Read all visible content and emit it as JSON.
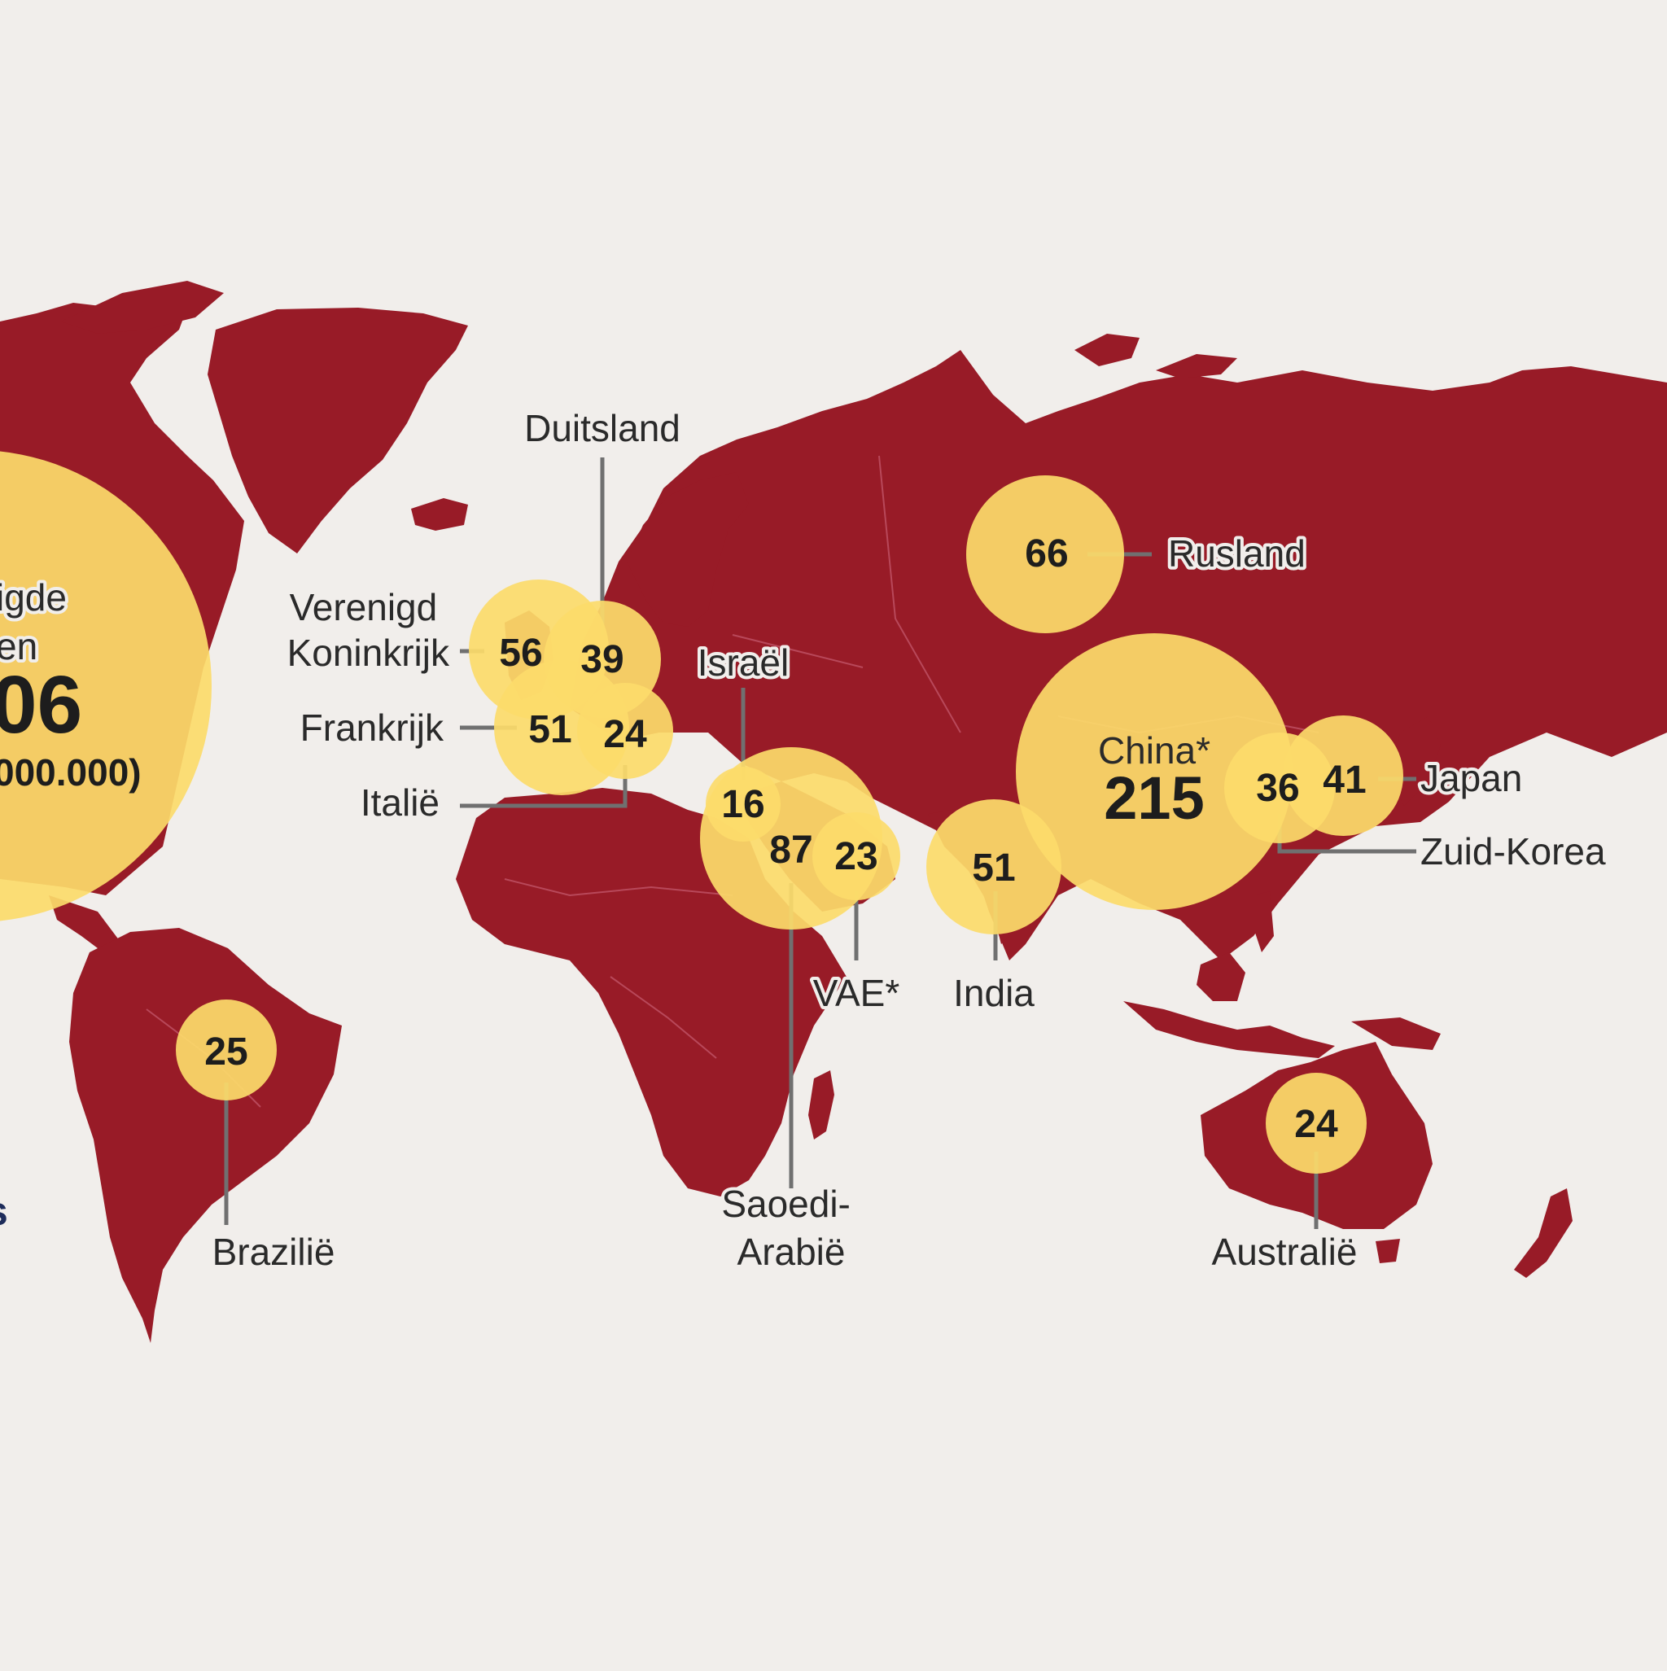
{
  "colors": {
    "background": "#f1eeeb",
    "land": "#981b27",
    "bubble": "#fcdb6a",
    "bubble_overlap": "#f7c448",
    "text": "#1d1d1d",
    "leader": "#707070"
  },
  "map": {
    "map_type": "world bubble map",
    "value_unit_text": "000.000)"
  },
  "countries": [
    {
      "id": "us",
      "label": "igde\nen",
      "value": "06",
      "value_num": null
    },
    {
      "id": "gb",
      "label": "Verenigd\nKoninkrijk",
      "value": "56",
      "value_num": 56
    },
    {
      "id": "de",
      "label": "Duitsland",
      "value": "39",
      "value_num": 39
    },
    {
      "id": "fr",
      "label": "Frankrijk",
      "value": "51",
      "value_num": 51
    },
    {
      "id": "it",
      "label": "Italië",
      "value": "24",
      "value_num": 24
    },
    {
      "id": "il",
      "label": "Israël",
      "value": "16",
      "value_num": 16
    },
    {
      "id": "sa",
      "label": "Saoedi-\nArabië",
      "value": "87",
      "value_num": 87
    },
    {
      "id": "ae",
      "label": "VAE*",
      "value": "23",
      "value_num": 23
    },
    {
      "id": "ru",
      "label": "Rusland",
      "value": "66",
      "value_num": 66
    },
    {
      "id": "cn",
      "label": "China*",
      "value": "215",
      "value_num": 215
    },
    {
      "id": "jp",
      "label": "Japan",
      "value": "41",
      "value_num": 41
    },
    {
      "id": "kr",
      "label": "Zuid-Korea",
      "value": "36",
      "value_num": 36
    },
    {
      "id": "in",
      "label": "India",
      "value": "51",
      "value_num": 51
    },
    {
      "id": "br",
      "label": "Brazilië",
      "value": "25",
      "value_num": 25
    },
    {
      "id": "au",
      "label": "Australië",
      "value": "24",
      "value_num": 24
    }
  ]
}
